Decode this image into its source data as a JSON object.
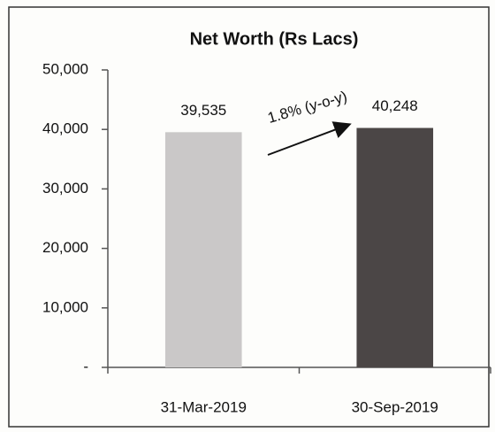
{
  "chart_data": {
    "type": "bar",
    "title": "Net Worth (Rs Lacs)",
    "categories": [
      "31-Mar-2019",
      "30-Sep-2019"
    ],
    "values": [
      39535,
      40248
    ],
    "value_labels": [
      "39,535",
      "40,248"
    ],
    "colors": [
      "#cac8c8",
      "#4b4646"
    ],
    "annotation": "1.8% (y-o-y)",
    "ylim": [
      0,
      50000
    ],
    "yticks": [
      {
        "value": 0,
        "label": "-"
      },
      {
        "value": 10000,
        "label": "10,000"
      },
      {
        "value": 20000,
        "label": "20,000"
      },
      {
        "value": 30000,
        "label": "30,000"
      },
      {
        "value": 40000,
        "label": "40,000"
      },
      {
        "value": 50000,
        "label": "50,000"
      }
    ],
    "grid": false
  }
}
